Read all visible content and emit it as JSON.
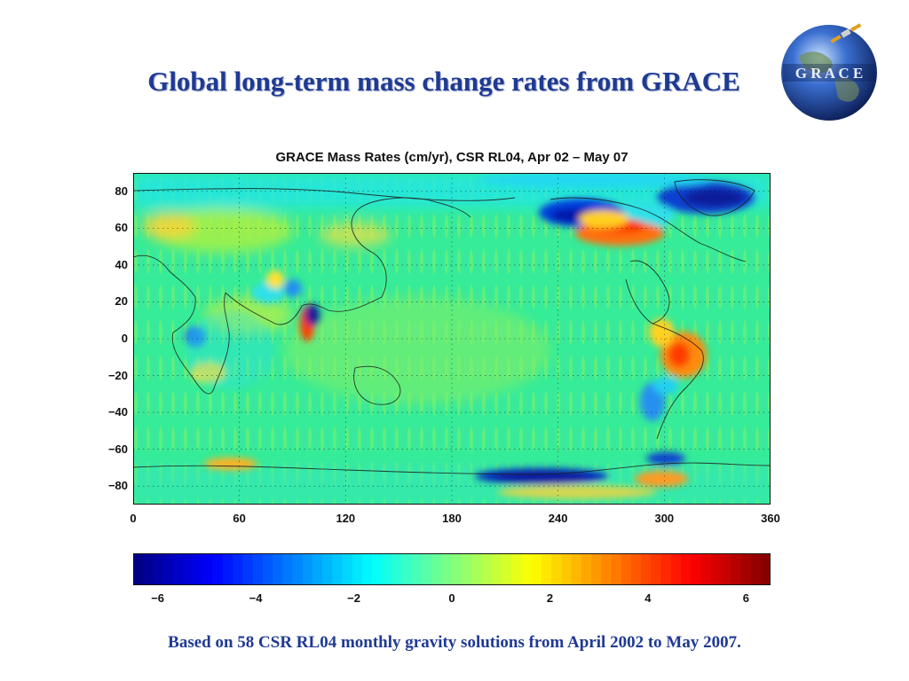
{
  "slide": {
    "title": "Global long-term mass change rates from GRACE",
    "caption": "Based on 58 CSR RL04 monthly gravity solutions from April 2002 to May 2007."
  },
  "logo": {
    "text": "G R A C E",
    "icon": "grace-globe-logo"
  },
  "map": {
    "title": "GRACE Mass Rates (cm/yr), CSR RL04, Apr 02 – May 07",
    "y_ticks": [
      "80",
      "60",
      "40",
      "20",
      "0",
      "−20",
      "−40",
      "−60",
      "−80"
    ],
    "x_ticks": [
      "0",
      "60",
      "120",
      "180",
      "240",
      "300",
      "360"
    ],
    "lon_range": [
      0,
      360
    ],
    "lat_range": [
      -90,
      90
    ],
    "grid": "dotted"
  },
  "colorbar": {
    "ticks": [
      "−6",
      "−4",
      "−2",
      "0",
      "2",
      "4",
      "6"
    ],
    "range": [
      -6.5,
      6.5
    ],
    "colormap": "jet"
  },
  "colors": {
    "title": "#1f3a93",
    "background": "#33ee99"
  }
}
